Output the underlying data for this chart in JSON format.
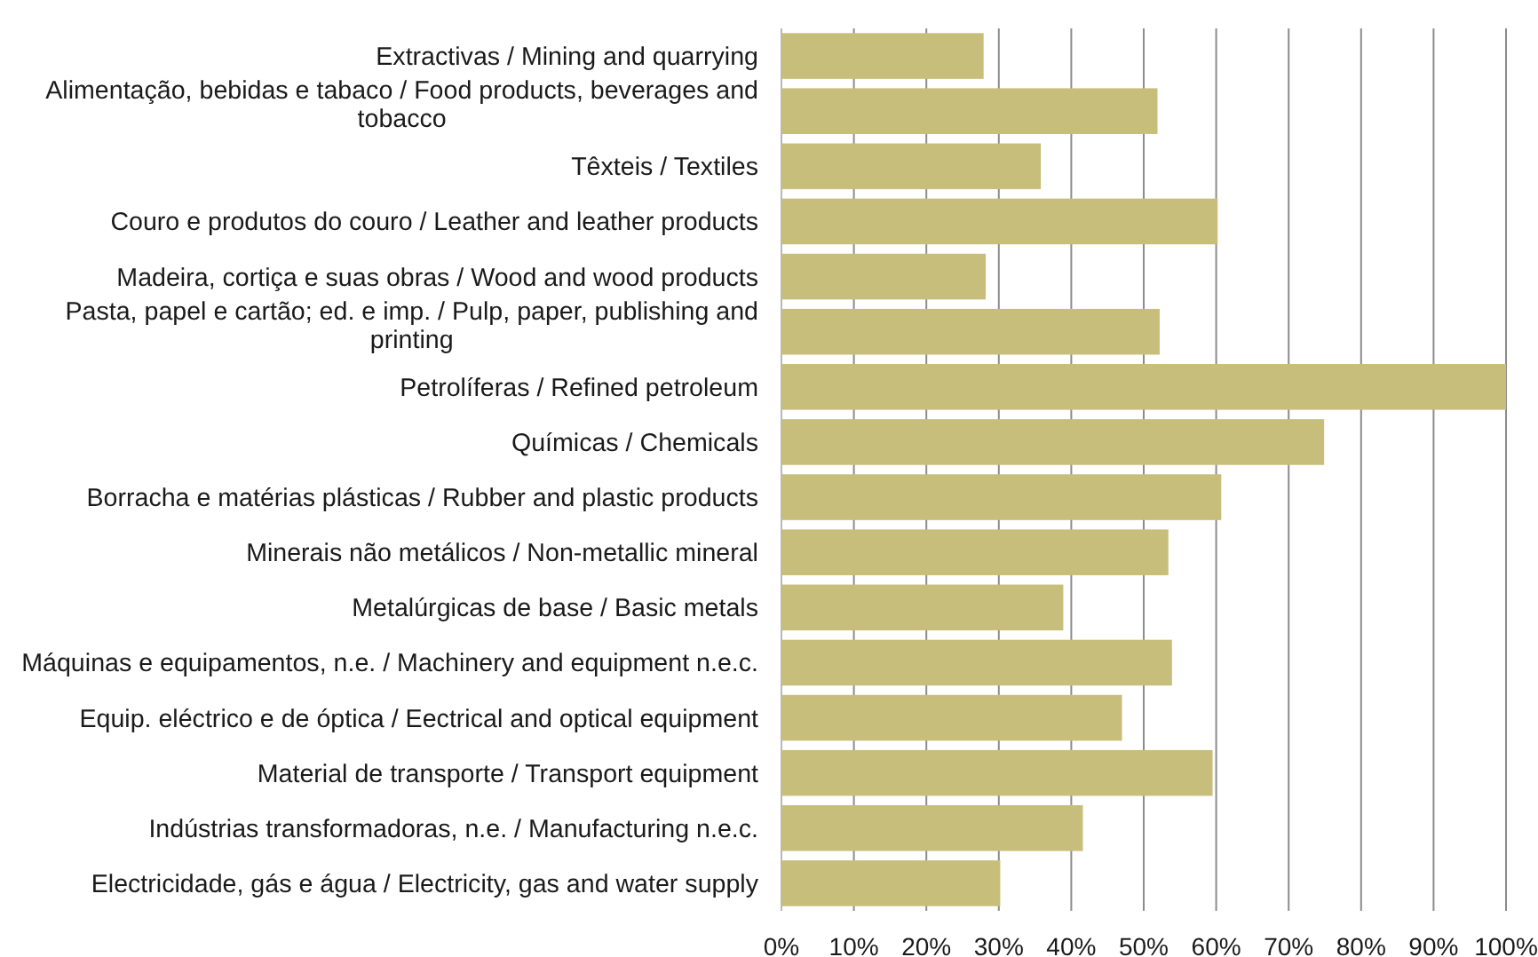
{
  "chart_data": {
    "type": "bar",
    "orientation": "horizontal",
    "categories": [
      "Extractivas / Mining and quarrying",
      "Alimentação, bebidas e tabaco / Food products, beverages and tobacco",
      "Têxteis / Textiles",
      "Couro e produtos do couro / Leather and leather products",
      "Madeira, cortiça e suas obras / Wood and wood products",
      "Pasta, papel e cartão; ed. e imp. / Pulp, paper, publishing and printing",
      "Petrolíferas / Refined petroleum",
      "Químicas / Chemicals",
      "Borracha e matérias plásticas / Rubber and plastic products",
      "Minerais não metálicos / Non-metallic mineral",
      "Metalúrgicas de base / Basic metals",
      "Máquinas e equipamentos, n.e. / Machinery and equipment n.e.c.",
      "Equip. eléctrico e de óptica / Eectrical and optical equipment",
      "Material de transporte / Transport equipment",
      "Indústrias transformadoras, n.e. / Manufacturing n.e.c.",
      "Electricidade, gás e água / Electricity, gas and water supply"
    ],
    "values": [
      27.9,
      51.9,
      35.8,
      60.2,
      28.2,
      52.2,
      100,
      74.9,
      60.7,
      53.4,
      38.9,
      53.9,
      47.0,
      59.5,
      41.6,
      30.2
    ],
    "color": "#c8be7c",
    "xlim": [
      0,
      100
    ],
    "xticks": [
      {
        "value": 0,
        "label": "0%"
      },
      {
        "value": 10,
        "label": "10%"
      },
      {
        "value": 20,
        "label": "20%"
      },
      {
        "value": 30,
        "label": "30%"
      },
      {
        "value": 40,
        "label": "40%"
      },
      {
        "value": 50,
        "label": "50%"
      },
      {
        "value": 60,
        "label": "60%"
      },
      {
        "value": 70,
        "label": "70%"
      },
      {
        "value": 80,
        "label": "80%"
      },
      {
        "value": 90,
        "label": "90%"
      },
      {
        "value": 100,
        "label": "100%"
      }
    ],
    "grid": "x"
  }
}
